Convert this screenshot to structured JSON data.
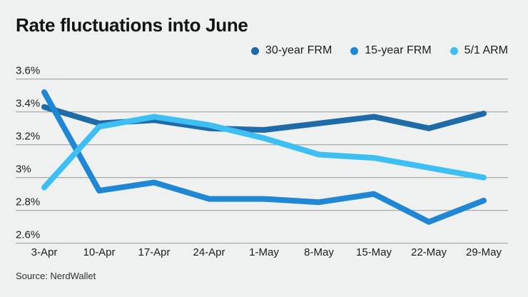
{
  "title": "Rate fluctuations into June",
  "source": "Source: NerdWallet",
  "colors": {
    "background": "#eff1f0",
    "gridline": "#95989a",
    "series_30yr": "#1e6ba8",
    "series_15yr": "#1f87d3",
    "series_arm": "#3ebff4",
    "text": "#1b1c1e"
  },
  "legend": {
    "items": [
      {
        "label": "30-year FRM",
        "color": "#1e6ba8"
      },
      {
        "label": "15-year FRM",
        "color": "#1f87d3"
      },
      {
        "label": "5/1 ARM",
        "color": "#3ebff4"
      }
    ]
  },
  "chart_data": {
    "type": "line",
    "title": "Rate fluctuations into June",
    "categories": [
      "3-Apr",
      "10-Apr",
      "17-Apr",
      "24-Apr",
      "1-May",
      "8-May",
      "15-May",
      "22-May",
      "29-May"
    ],
    "series": [
      {
        "name": "30-year FRM",
        "color": "#1e6ba8",
        "values": [
          3.43,
          3.33,
          3.35,
          3.3,
          3.29,
          3.33,
          3.37,
          3.3,
          3.39
        ]
      },
      {
        "name": "15-year FRM",
        "color": "#1f87d3",
        "values": [
          3.52,
          2.92,
          2.97,
          2.87,
          2.87,
          2.85,
          2.9,
          2.73,
          2.86
        ]
      },
      {
        "name": "5/1 ARM",
        "color": "#3ebff4",
        "values": [
          2.94,
          3.31,
          3.37,
          3.32,
          3.24,
          3.14,
          3.12,
          3.06,
          3.0
        ]
      }
    ],
    "ylim": [
      2.6,
      3.6
    ],
    "yticks": [
      {
        "label": "3.6%",
        "value": 3.6
      },
      {
        "label": "3.4%",
        "value": 3.4
      },
      {
        "label": "3.2%",
        "value": 3.2
      },
      {
        "label": "3%",
        "value": 3.0
      },
      {
        "label": "2.8%",
        "value": 2.8
      },
      {
        "label": "2.6%",
        "value": 2.6
      }
    ],
    "grid": true,
    "legend_position": "top-right",
    "xlabel": "",
    "ylabel": ""
  }
}
